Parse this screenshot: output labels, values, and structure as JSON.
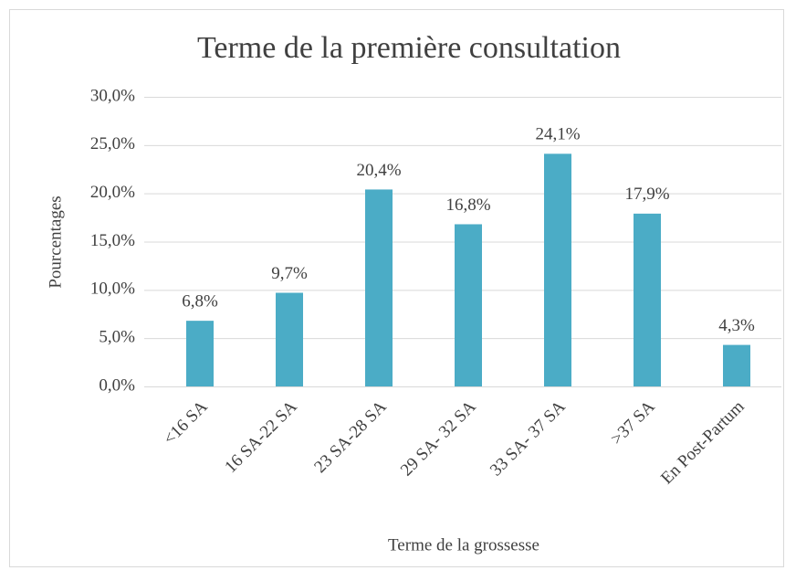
{
  "chart_data": {
    "type": "bar",
    "title": "Terme de la première consultation",
    "x_label": "Terme de la grossesse",
    "y_label": "Pourcentages",
    "categories": [
      "<16 SA",
      "16 SA-22 SA",
      "23 SA-28 SA",
      "29 SA- 32 SA",
      "33 SA- 37 SA",
      ">37 SA",
      "En Post-Partum"
    ],
    "values": [
      6.8,
      9.7,
      20.4,
      16.8,
      24.1,
      17.9,
      4.3
    ],
    "value_labels": [
      "6,8%",
      "9,7%",
      "20,4%",
      "16,8%",
      "24,1%",
      "17,9%",
      "4,3%"
    ],
    "color": "#4bacc6",
    "ylim": [
      0,
      30
    ],
    "yticks": [
      {
        "value": 0,
        "label": "0,0%"
      },
      {
        "value": 5,
        "label": "5,0%"
      },
      {
        "value": 10,
        "label": "10,0%"
      },
      {
        "value": 15,
        "label": "15,0%"
      },
      {
        "value": 20,
        "label": "20,0%"
      },
      {
        "value": 25,
        "label": "25,0%"
      },
      {
        "value": 30,
        "label": "30,0%"
      }
    ],
    "grid": true
  }
}
